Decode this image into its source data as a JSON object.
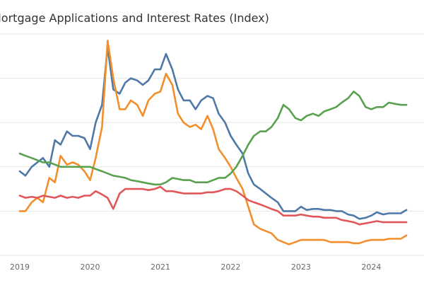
{
  "chart_data": {
    "type": "line",
    "title": "Mortgage Applications and Interest Rates (Index)",
    "xlabel": "",
    "ylabel": "",
    "x_ticks": [
      "2019",
      "2020",
      "2021",
      "2022",
      "2023",
      "2024"
    ],
    "xlim": [
      2019.0,
      2024.75
    ],
    "ylim": [
      0,
      100
    ],
    "grid": "horizontal",
    "legend": "none",
    "series": [
      {
        "color": "#4e79a7",
        "points": [
          [
            2019.0,
            38
          ],
          [
            2019.08,
            36
          ],
          [
            2019.17,
            40
          ],
          [
            2019.25,
            42
          ],
          [
            2019.33,
            44
          ],
          [
            2019.42,
            40
          ],
          [
            2019.5,
            52
          ],
          [
            2019.58,
            50
          ],
          [
            2019.67,
            56
          ],
          [
            2019.75,
            54
          ],
          [
            2019.83,
            54
          ],
          [
            2019.92,
            53
          ],
          [
            2020.0,
            48
          ],
          [
            2020.08,
            60
          ],
          [
            2020.17,
            68
          ],
          [
            2020.25,
            94
          ],
          [
            2020.33,
            75
          ],
          [
            2020.42,
            73
          ],
          [
            2020.5,
            78
          ],
          [
            2020.58,
            80
          ],
          [
            2020.67,
            79
          ],
          [
            2020.75,
            77
          ],
          [
            2020.83,
            79
          ],
          [
            2020.92,
            84
          ],
          [
            2021.0,
            84
          ],
          [
            2021.08,
            91
          ],
          [
            2021.17,
            84
          ],
          [
            2021.25,
            75
          ],
          [
            2021.33,
            70
          ],
          [
            2021.42,
            70
          ],
          [
            2021.5,
            66
          ],
          [
            2021.58,
            70
          ],
          [
            2021.67,
            72
          ],
          [
            2021.75,
            71
          ],
          [
            2021.83,
            64
          ],
          [
            2021.92,
            60
          ],
          [
            2022.0,
            54
          ],
          [
            2022.08,
            50
          ],
          [
            2022.17,
            46
          ],
          [
            2022.25,
            37
          ],
          [
            2022.33,
            32
          ],
          [
            2022.42,
            30
          ],
          [
            2022.5,
            28
          ],
          [
            2022.58,
            26
          ],
          [
            2022.67,
            24
          ],
          [
            2022.75,
            20
          ],
          [
            2022.83,
            20
          ],
          [
            2022.92,
            20
          ],
          [
            2023.0,
            22
          ],
          [
            2023.08,
            20.5
          ],
          [
            2023.17,
            21
          ],
          [
            2023.25,
            21
          ],
          [
            2023.33,
            20.5
          ],
          [
            2023.42,
            20.5
          ],
          [
            2023.5,
            20
          ],
          [
            2023.58,
            20
          ],
          [
            2023.67,
            18.5
          ],
          [
            2023.75,
            18
          ],
          [
            2023.83,
            16.5
          ],
          [
            2023.92,
            17
          ],
          [
            2024.0,
            18
          ],
          [
            2024.08,
            19.5
          ],
          [
            2024.17,
            18.5
          ],
          [
            2024.25,
            19
          ],
          [
            2024.33,
            19
          ],
          [
            2024.42,
            19
          ],
          [
            2024.5,
            20.5
          ]
        ]
      },
      {
        "color": "#f28e2b",
        "points": [
          [
            2019.0,
            20
          ],
          [
            2019.08,
            20
          ],
          [
            2019.17,
            24
          ],
          [
            2019.25,
            26
          ],
          [
            2019.33,
            24
          ],
          [
            2019.42,
            35
          ],
          [
            2019.5,
            33
          ],
          [
            2019.58,
            45
          ],
          [
            2019.67,
            41
          ],
          [
            2019.75,
            42
          ],
          [
            2019.83,
            41
          ],
          [
            2019.92,
            38
          ],
          [
            2020.0,
            34
          ],
          [
            2020.08,
            44
          ],
          [
            2020.17,
            58
          ],
          [
            2020.25,
            97
          ],
          [
            2020.33,
            80
          ],
          [
            2020.42,
            66
          ],
          [
            2020.5,
            66
          ],
          [
            2020.58,
            70
          ],
          [
            2020.67,
            68
          ],
          [
            2020.75,
            63
          ],
          [
            2020.83,
            70
          ],
          [
            2020.92,
            73
          ],
          [
            2021.0,
            74
          ],
          [
            2021.08,
            82
          ],
          [
            2021.17,
            77
          ],
          [
            2021.25,
            64
          ],
          [
            2021.33,
            60
          ],
          [
            2021.42,
            58
          ],
          [
            2021.5,
            59
          ],
          [
            2021.58,
            57
          ],
          [
            2021.67,
            63
          ],
          [
            2021.75,
            57
          ],
          [
            2021.83,
            48
          ],
          [
            2021.92,
            44
          ],
          [
            2022.0,
            40
          ],
          [
            2022.08,
            35
          ],
          [
            2022.17,
            30
          ],
          [
            2022.25,
            22
          ],
          [
            2022.33,
            14
          ],
          [
            2022.42,
            12
          ],
          [
            2022.5,
            11
          ],
          [
            2022.58,
            10
          ],
          [
            2022.67,
            7
          ],
          [
            2022.75,
            6
          ],
          [
            2022.83,
            5
          ],
          [
            2022.92,
            6
          ],
          [
            2023.0,
            7
          ],
          [
            2023.08,
            7
          ],
          [
            2023.17,
            7
          ],
          [
            2023.25,
            7
          ],
          [
            2023.33,
            7
          ],
          [
            2023.42,
            6
          ],
          [
            2023.5,
            6
          ],
          [
            2023.58,
            6
          ],
          [
            2023.67,
            6
          ],
          [
            2023.75,
            5.5
          ],
          [
            2023.83,
            5.5
          ],
          [
            2023.92,
            6.5
          ],
          [
            2024.0,
            7
          ],
          [
            2024.08,
            7
          ],
          [
            2024.17,
            7
          ],
          [
            2024.25,
            7.5
          ],
          [
            2024.33,
            7.5
          ],
          [
            2024.42,
            7.5
          ],
          [
            2024.5,
            9
          ]
        ]
      },
      {
        "color": "#59a14f",
        "points": [
          [
            2019.0,
            46
          ],
          [
            2019.08,
            45
          ],
          [
            2019.17,
            44
          ],
          [
            2019.25,
            43
          ],
          [
            2019.33,
            42
          ],
          [
            2019.42,
            42
          ],
          [
            2019.5,
            41
          ],
          [
            2019.58,
            40
          ],
          [
            2019.67,
            40
          ],
          [
            2019.75,
            40
          ],
          [
            2019.83,
            40
          ],
          [
            2019.92,
            40
          ],
          [
            2020.0,
            40
          ],
          [
            2020.08,
            39
          ],
          [
            2020.17,
            38
          ],
          [
            2020.25,
            37
          ],
          [
            2020.33,
            36
          ],
          [
            2020.42,
            35.5
          ],
          [
            2020.5,
            35
          ],
          [
            2020.58,
            34
          ],
          [
            2020.67,
            33.5
          ],
          [
            2020.75,
            33
          ],
          [
            2020.83,
            32.5
          ],
          [
            2020.92,
            32
          ],
          [
            2021.0,
            32
          ],
          [
            2021.08,
            33
          ],
          [
            2021.17,
            35
          ],
          [
            2021.25,
            34.5
          ],
          [
            2021.33,
            34
          ],
          [
            2021.42,
            34
          ],
          [
            2021.5,
            33
          ],
          [
            2021.58,
            33
          ],
          [
            2021.67,
            33
          ],
          [
            2021.75,
            34
          ],
          [
            2021.83,
            35
          ],
          [
            2021.92,
            35
          ],
          [
            2022.0,
            37
          ],
          [
            2022.08,
            40
          ],
          [
            2022.17,
            45
          ],
          [
            2022.25,
            50
          ],
          [
            2022.33,
            54
          ],
          [
            2022.42,
            56
          ],
          [
            2022.5,
            56
          ],
          [
            2022.58,
            58
          ],
          [
            2022.67,
            62
          ],
          [
            2022.75,
            68
          ],
          [
            2022.83,
            66
          ],
          [
            2022.92,
            62
          ],
          [
            2023.0,
            61
          ],
          [
            2023.08,
            63
          ],
          [
            2023.17,
            64
          ],
          [
            2023.25,
            63
          ],
          [
            2023.33,
            65
          ],
          [
            2023.42,
            66
          ],
          [
            2023.5,
            67
          ],
          [
            2023.58,
            69
          ],
          [
            2023.67,
            71
          ],
          [
            2023.75,
            74
          ],
          [
            2023.83,
            72
          ],
          [
            2023.92,
            67
          ],
          [
            2024.0,
            66
          ],
          [
            2024.08,
            67
          ],
          [
            2024.17,
            67
          ],
          [
            2024.25,
            69
          ],
          [
            2024.33,
            68.5
          ],
          [
            2024.42,
            68
          ],
          [
            2024.5,
            68
          ]
        ]
      },
      {
        "color": "#e15759",
        "points": [
          [
            2019.0,
            27
          ],
          [
            2019.08,
            26
          ],
          [
            2019.17,
            26.5
          ],
          [
            2019.25,
            26
          ],
          [
            2019.33,
            27
          ],
          [
            2019.42,
            26.5
          ],
          [
            2019.5,
            26
          ],
          [
            2019.58,
            27
          ],
          [
            2019.67,
            26
          ],
          [
            2019.75,
            26.5
          ],
          [
            2019.83,
            26
          ],
          [
            2019.92,
            27
          ],
          [
            2020.0,
            27
          ],
          [
            2020.08,
            29
          ],
          [
            2020.17,
            27.5
          ],
          [
            2020.25,
            26
          ],
          [
            2020.33,
            21
          ],
          [
            2020.42,
            28
          ],
          [
            2020.5,
            30
          ],
          [
            2020.58,
            30
          ],
          [
            2020.67,
            30
          ],
          [
            2020.75,
            30
          ],
          [
            2020.83,
            29.5
          ],
          [
            2020.92,
            30
          ],
          [
            2021.0,
            31
          ],
          [
            2021.08,
            29
          ],
          [
            2021.17,
            29
          ],
          [
            2021.25,
            28.5
          ],
          [
            2021.33,
            28
          ],
          [
            2021.42,
            28
          ],
          [
            2021.5,
            28
          ],
          [
            2021.58,
            28
          ],
          [
            2021.67,
            28.5
          ],
          [
            2021.75,
            28.5
          ],
          [
            2021.83,
            29
          ],
          [
            2021.92,
            30
          ],
          [
            2022.0,
            30
          ],
          [
            2022.08,
            29
          ],
          [
            2022.17,
            27
          ],
          [
            2022.25,
            25
          ],
          [
            2022.33,
            24
          ],
          [
            2022.42,
            23
          ],
          [
            2022.5,
            22
          ],
          [
            2022.58,
            21
          ],
          [
            2022.67,
            20
          ],
          [
            2022.75,
            18
          ],
          [
            2022.83,
            18
          ],
          [
            2022.92,
            18
          ],
          [
            2023.0,
            18.5
          ],
          [
            2023.08,
            18
          ],
          [
            2023.17,
            17.5
          ],
          [
            2023.25,
            17.5
          ],
          [
            2023.33,
            17
          ],
          [
            2023.42,
            17
          ],
          [
            2023.5,
            17
          ],
          [
            2023.58,
            16
          ],
          [
            2023.67,
            15.5
          ],
          [
            2023.75,
            15
          ],
          [
            2023.83,
            14
          ],
          [
            2023.92,
            14.5
          ],
          [
            2024.0,
            15
          ],
          [
            2024.08,
            15.5
          ],
          [
            2024.17,
            15
          ],
          [
            2024.25,
            15
          ],
          [
            2024.33,
            15
          ],
          [
            2024.42,
            15
          ],
          [
            2024.5,
            15
          ]
        ]
      }
    ]
  }
}
